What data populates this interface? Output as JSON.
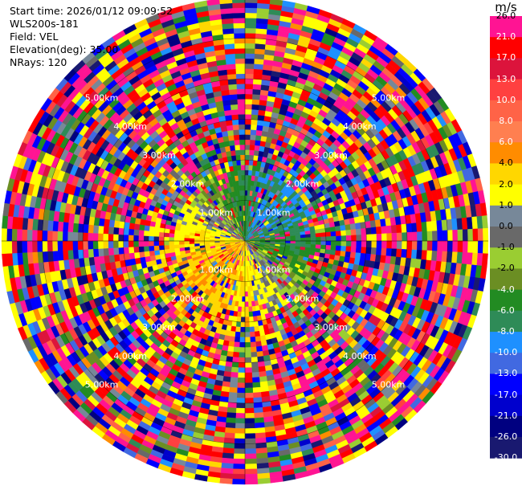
{
  "header": {
    "start_time": "Start time: 2026/01/12 09:09:52",
    "instrument": "WLS200s-181",
    "field": "Field: VEL",
    "elevation": "Elevation(deg): 35.00",
    "nrays": "NRays: 120"
  },
  "colorbar": {
    "unit": "m/s",
    "ticks": [
      "26.0",
      "21.0",
      "17.0",
      "13.0",
      "10.0",
      "8.0",
      "6.0",
      "4.0",
      "2.0",
      "1.0",
      "0.0",
      "-1.0",
      "-2.0",
      "-4.0",
      "-6.0",
      "-8.0",
      "-10.0",
      "-13.0",
      "-17.0",
      "-21.0",
      "-26.0",
      "-30.0"
    ],
    "colors": [
      "#ff1493",
      "#ff0000",
      "#dc143c",
      "#ff4040",
      "#ff6347",
      "#ff7f50",
      "#ff8c00",
      "#ffd700",
      "#ffff00",
      "#778899",
      "#696969",
      "#9acd32",
      "#6b8e23",
      "#228b22",
      "#2e8b57",
      "#1e90ff",
      "#4169e1",
      "#0000ff",
      "#0000cd",
      "#000080",
      "#191970"
    ],
    "label_colors": [
      "#000000",
      "#ffffff",
      "#ffffff",
      "#ffffff",
      "#ffffff",
      "#ffffff",
      "#ffffff",
      "#000000",
      "#000000",
      "#000000",
      "#000000",
      "#000000",
      "#000000",
      "#ffffff",
      "#ffffff",
      "#ffffff",
      "#ffffff",
      "#ffffff",
      "#ffffff",
      "#ffffff",
      "#ffffff",
      "#ffffff"
    ]
  },
  "chart_data": {
    "type": "heatmap",
    "subtype": "polar_ppi",
    "field": "VEL",
    "units": "m/s",
    "nrays": 120,
    "range_rings_km": [
      1.0,
      2.0,
      3.0,
      4.0,
      5.0
    ],
    "range_ring_labels": [
      "1.00km",
      "2.00km",
      "3.00km",
      "4.00km",
      "5.00km"
    ],
    "max_range_km": 6.0,
    "vmin": -30.0,
    "vmax": 26.0,
    "near_field_pattern": {
      "north_east": "blue (negative, toward)",
      "north_west": "green (slightly negative)",
      "south_west": "red/orange (positive)",
      "south_east": "orange/yellow (positive)",
      "east_west_axis": "yellow / grey near zero"
    },
    "far_field": "noise across all colors"
  }
}
